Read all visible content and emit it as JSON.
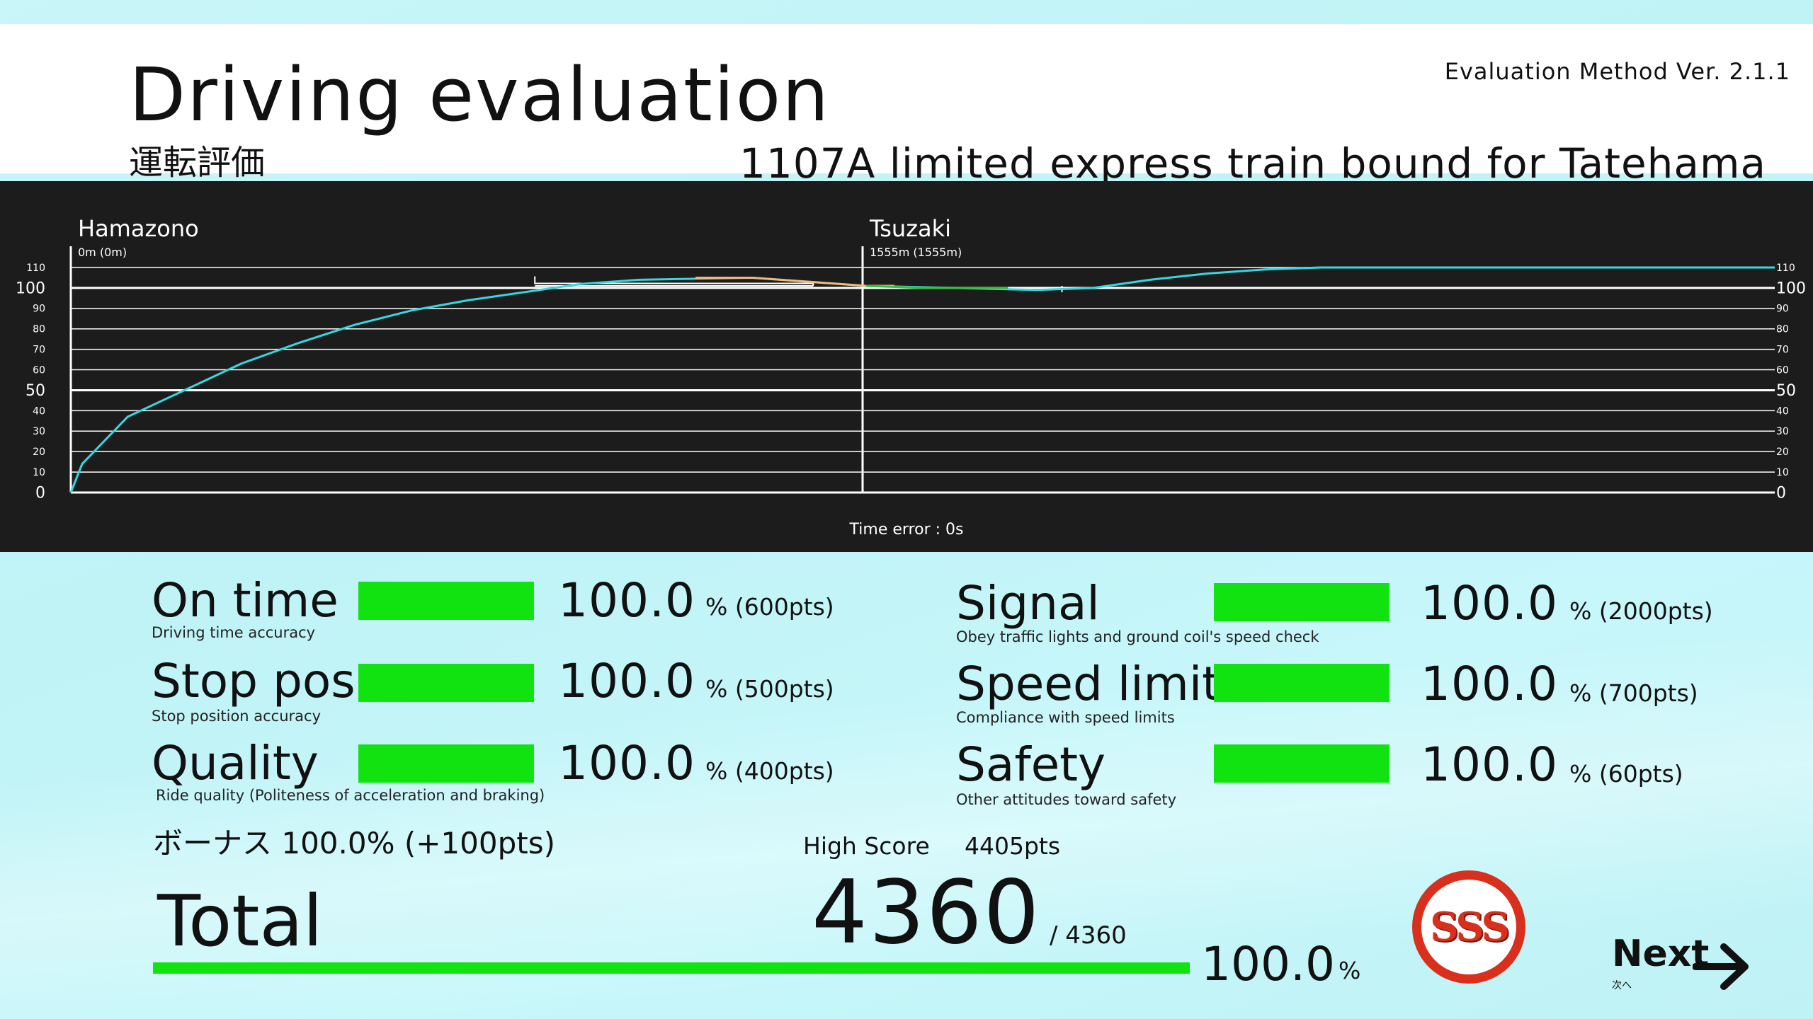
{
  "header": {
    "title": "Driving evaluation",
    "subtitle_jp": "運転評価",
    "method": "Evaluation Method  Ver. 2.1.1",
    "train": "1107A limited express train bound for Tatehama"
  },
  "chart_data": {
    "type": "line",
    "title": "",
    "stations": [
      {
        "name": "Hamazono",
        "distance": "0m (0m)"
      },
      {
        "name": "Tsuzaki",
        "distance": "1555m (1555m)"
      }
    ],
    "y_ticks_major": [
      "100",
      "50",
      "0"
    ],
    "y_ticks_minor": [
      "110",
      "90",
      "80",
      "70",
      "60",
      "40",
      "30",
      "20",
      "10"
    ],
    "ylim": [
      0,
      110
    ],
    "x_unit": "m",
    "xlim": [
      0,
      3000
    ],
    "grid": true,
    "series": [
      {
        "color": "#33d8e0",
        "x": [
          0,
          20,
          100,
          200,
          300,
          400,
          500,
          600,
          700,
          800,
          900,
          1000,
          1200,
          1400,
          1555,
          1700,
          1800,
          1900,
          2000,
          2100,
          2200,
          2400,
          2700,
          3000
        ],
        "y": [
          0,
          14,
          37,
          50,
          63,
          73,
          82,
          89,
          94,
          98,
          102,
          104,
          105,
          101,
          100,
          99,
          100,
          104,
          107,
          109,
          110,
          110,
          110,
          110
        ]
      },
      {
        "color": "#f0b87a",
        "x": [
          1100,
          1200,
          1300,
          1400,
          1450
        ],
        "y": [
          105,
          105,
          103,
          101,
          101
        ]
      },
      {
        "color": "#33c03a",
        "x": [
          1400,
          1500,
          1555,
          1650
        ],
        "y": [
          101,
          100,
          100,
          100
        ]
      }
    ],
    "speed_limit_box": {
      "x_start": 817,
      "x_end": 1307,
      "y_top": 105,
      "y_bottom": 101
    },
    "marker_x": 1745,
    "time_error": "Time error : 0s"
  },
  "scores_left": [
    {
      "label": "On time",
      "sub": "Driving time accuracy",
      "value": "100.0",
      "pts": "% (600pts)",
      "fill": 1.0
    },
    {
      "label": "Stop pos.",
      "sub": "Stop position accuracy",
      "value": "100.0",
      "pts": "% (500pts)",
      "fill": 1.0
    },
    {
      "label": "Quality",
      "sub": "Ride quality (Politeness of acceleration and braking)",
      "value": "100.0",
      "pts": "% (400pts)",
      "fill": 1.0
    }
  ],
  "scores_right": [
    {
      "label": "Signal",
      "sub": "Obey traffic lights and ground coil's speed check",
      "value": "100.0",
      "pts": "% (2000pts)",
      "fill": 1.0
    },
    {
      "label": "Speed limit",
      "sub": "Compliance with speed limits",
      "value": "100.0",
      "pts": "% (700pts)",
      "fill": 1.0
    },
    {
      "label": "Safety",
      "sub": "Other attitudes toward safety",
      "value": "100.0",
      "pts": "% (60pts)",
      "fill": 1.0
    }
  ],
  "bonus": "ボーナス 100.0% (+100pts)",
  "high_score": {
    "label": "High Score",
    "value": "4405pts"
  },
  "total": {
    "label": "Total",
    "score": "4360",
    "max": "/ 4360",
    "percent": "100.0",
    "percent_unit": "%",
    "fill": 1.0
  },
  "rank": "SSS",
  "next": {
    "label": "Next",
    "sub": "次へ",
    "icon": "arrow-right-icon"
  },
  "colors": {
    "bar": "#11e311",
    "chart_bg": "#1c1c1c",
    "speed_line": "#33d8e0",
    "rank": "#d8301c"
  }
}
